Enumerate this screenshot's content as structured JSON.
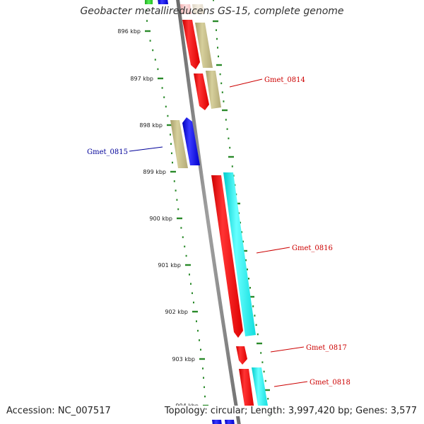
{
  "title": "Geobacter metallireducens GS-15, complete genome",
  "footer": {
    "accession": "Accession: NC_007517",
    "stats": "Topology: circular; Length: 3,997,420 bp; Genes: 3,577"
  },
  "colors": {
    "backbone": "#808080",
    "tick": "#2a8a2a",
    "red": "#ff1a1a",
    "tan": "#c8c08a",
    "blue": "#1111ee",
    "cyan": "#22eeee",
    "green": "#33cc33",
    "pink": "#ffc8c8",
    "label_red": "#cc0000",
    "label_blue": "#000099"
  },
  "scale": {
    "labels": [
      "896 kbp",
      "897 kbp",
      "898 kbp",
      "899 kbp",
      "900 kbp",
      "901 kbp",
      "902 kbp",
      "903 kbp",
      "904 kbp"
    ]
  },
  "gene_labels": [
    {
      "name": "Gmet_0814",
      "color": "label_red"
    },
    {
      "name": "Gmet_0815",
      "color": "label_blue"
    },
    {
      "name": "Gmet_0816",
      "color": "label_red"
    },
    {
      "name": "Gmet_0817",
      "color": "label_red"
    },
    {
      "name": "Gmet_0818",
      "color": "label_red"
    }
  ]
}
